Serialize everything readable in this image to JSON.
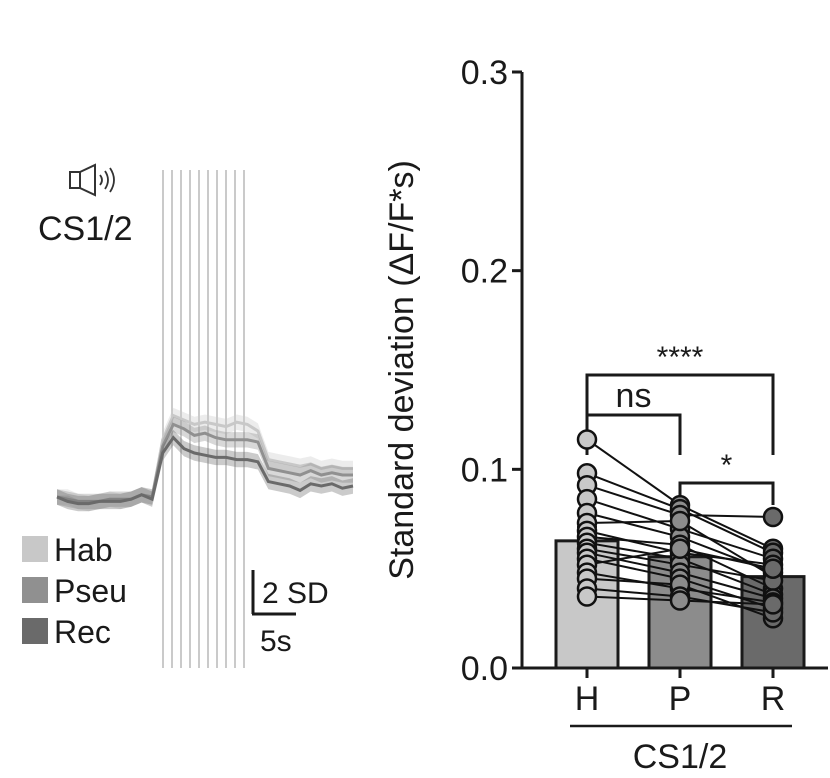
{
  "left_panel": {
    "stimulus_label": "CS1/2",
    "stimulus_icon": "speaker-icon",
    "legend": [
      {
        "label": "Hab",
        "color": "#c8c8c8"
      },
      {
        "label": "Pseu",
        "color": "#909090"
      },
      {
        "label": "Rec",
        "color": "#6a6a6a"
      }
    ],
    "scale_bar": {
      "y_label": "2 SD",
      "x_label": "5s"
    },
    "pulse_count": 10,
    "traces": {
      "Hab": [
        0,
        0,
        -0.2,
        -0.3,
        -0.2,
        -0.1,
        -0.2,
        -0.1,
        0.1,
        0,
        2.6,
        3.7,
        3.5,
        3.3,
        3.4,
        3.3,
        3.2,
        3.4,
        3.3,
        3.0,
        1.7,
        1.6,
        1.5,
        1.4,
        1.5,
        1.3,
        1.4,
        1.3,
        1.3
      ],
      "Pseu": [
        0,
        -0.1,
        -0.2,
        -0.2,
        -0.2,
        -0.1,
        -0.1,
        -0.1,
        0.1,
        0,
        2.3,
        3.3,
        3.1,
        2.8,
        2.9,
        2.7,
        2.6,
        2.6,
        2.6,
        2.5,
        1.3,
        1.2,
        1.1,
        1.0,
        1.2,
        1.0,
        1.1,
        1.0,
        1.0
      ],
      "Rec": [
        0,
        -0.2,
        -0.3,
        -0.3,
        -0.2,
        -0.2,
        -0.2,
        -0.1,
        0.1,
        -0.1,
        2.0,
        2.7,
        2.2,
        2.0,
        1.9,
        1.8,
        1.8,
        1.7,
        1.7,
        1.6,
        0.7,
        0.6,
        0.5,
        0.3,
        0.6,
        0.5,
        0.6,
        0.4,
        0.5
      ]
    }
  },
  "chart_data": {
    "type": "bar",
    "ylabel": "Standard deviation (ΔF/F*s)",
    "xlabel": "CS1/2",
    "categories": [
      "H",
      "P",
      "R"
    ],
    "values": [
      0.064,
      0.056,
      0.046
    ],
    "errors": [
      0.007,
      0.004,
      0.004
    ],
    "colors": [
      "#c8c8c8",
      "#8c8c8c",
      "#6a6a6a"
    ],
    "ylim": [
      0,
      0.3
    ],
    "yticks": [
      "0.0",
      "0.1",
      "0.2",
      "0.3"
    ],
    "subjects": [
      [
        0.115,
        0.082,
        0.06
      ],
      [
        0.098,
        0.08,
        0.058
      ],
      [
        0.092,
        0.077,
        0.076
      ],
      [
        0.085,
        0.07,
        0.055
      ],
      [
        0.078,
        0.066,
        0.048
      ],
      [
        0.073,
        0.074,
        0.046
      ],
      [
        0.069,
        0.058,
        0.052
      ],
      [
        0.066,
        0.062,
        0.04
      ],
      [
        0.063,
        0.055,
        0.037
      ],
      [
        0.06,
        0.052,
        0.044
      ],
      [
        0.058,
        0.048,
        0.035
      ],
      [
        0.055,
        0.045,
        0.03
      ],
      [
        0.052,
        0.06,
        0.05
      ],
      [
        0.048,
        0.04,
        0.033
      ],
      [
        0.045,
        0.042,
        0.025
      ],
      [
        0.04,
        0.036,
        0.028
      ],
      [
        0.036,
        0.034,
        0.032
      ]
    ],
    "comparisons": [
      {
        "from": 0,
        "to": 1,
        "label": "ns"
      },
      {
        "from": 1,
        "to": 2,
        "label": "*"
      },
      {
        "from": 0,
        "to": 2,
        "label": "****"
      }
    ]
  }
}
